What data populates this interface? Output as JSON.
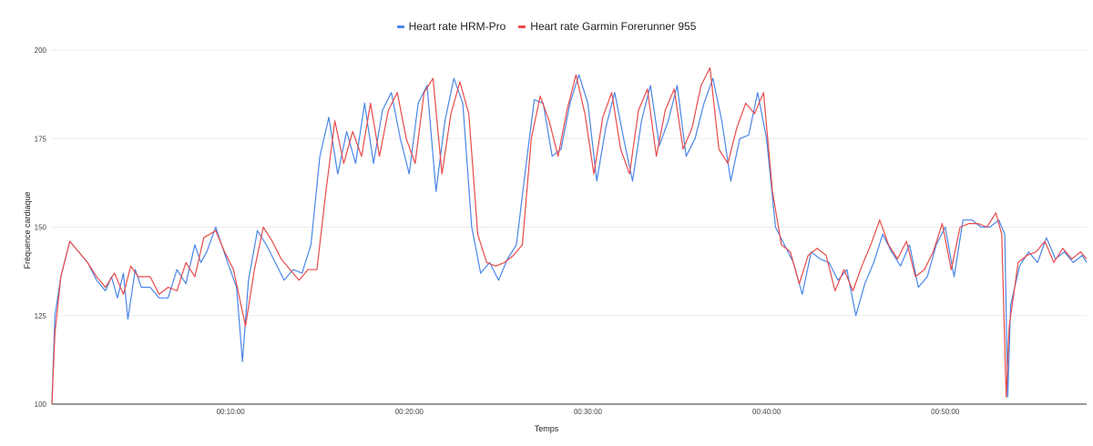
{
  "chart_data": {
    "type": "line",
    "xlabel": "Temps",
    "ylabel": "Fréquence cardiaque",
    "ylim": [
      100,
      200
    ],
    "xlim_seconds": [
      0,
      3475
    ],
    "y_ticks": [
      "100",
      "125",
      "150",
      "175",
      "200"
    ],
    "x_ticks": [
      {
        "label": "00:10:00",
        "t": 600
      },
      {
        "label": "00:20:00",
        "t": 1200
      },
      {
        "label": "00:30:00",
        "t": 1800
      },
      {
        "label": "00:40:00",
        "t": 2400
      },
      {
        "label": "00:50:00",
        "t": 3000
      }
    ],
    "grid": true,
    "legend_position": "top-center",
    "x_unit": "seconds",
    "series": [
      {
        "name": "Heart rate HRM-Pro",
        "color": "#4a86e8",
        "points": [
          [
            0,
            100
          ],
          [
            10,
            125
          ],
          [
            30,
            136
          ],
          [
            60,
            146
          ],
          [
            90,
            143
          ],
          [
            120,
            140
          ],
          [
            150,
            135
          ],
          [
            180,
            132
          ],
          [
            200,
            136
          ],
          [
            220,
            130
          ],
          [
            240,
            137
          ],
          [
            255,
            124
          ],
          [
            280,
            138
          ],
          [
            300,
            133
          ],
          [
            330,
            133
          ],
          [
            360,
            130
          ],
          [
            390,
            130
          ],
          [
            420,
            138
          ],
          [
            450,
            134
          ],
          [
            480,
            145
          ],
          [
            500,
            140
          ],
          [
            520,
            143
          ],
          [
            550,
            150
          ],
          [
            590,
            140
          ],
          [
            620,
            133
          ],
          [
            640,
            112
          ],
          [
            660,
            135
          ],
          [
            690,
            149
          ],
          [
            720,
            145
          ],
          [
            750,
            140
          ],
          [
            780,
            135
          ],
          [
            810,
            138
          ],
          [
            840,
            137
          ],
          [
            870,
            145
          ],
          [
            900,
            170
          ],
          [
            930,
            181
          ],
          [
            960,
            165
          ],
          [
            990,
            177
          ],
          [
            1020,
            168
          ],
          [
            1050,
            185
          ],
          [
            1080,
            168
          ],
          [
            1110,
            183
          ],
          [
            1140,
            188
          ],
          [
            1170,
            175
          ],
          [
            1200,
            165
          ],
          [
            1230,
            185
          ],
          [
            1260,
            190
          ],
          [
            1290,
            160
          ],
          [
            1320,
            180
          ],
          [
            1350,
            192
          ],
          [
            1380,
            185
          ],
          [
            1410,
            150
          ],
          [
            1440,
            137
          ],
          [
            1470,
            140
          ],
          [
            1500,
            135
          ],
          [
            1530,
            141
          ],
          [
            1560,
            145
          ],
          [
            1590,
            166
          ],
          [
            1620,
            186
          ],
          [
            1650,
            185
          ],
          [
            1680,
            170
          ],
          [
            1710,
            172
          ],
          [
            1740,
            185
          ],
          [
            1770,
            193
          ],
          [
            1800,
            185
          ],
          [
            1830,
            163
          ],
          [
            1860,
            178
          ],
          [
            1890,
            188
          ],
          [
            1920,
            175
          ],
          [
            1950,
            163
          ],
          [
            1980,
            180
          ],
          [
            2010,
            190
          ],
          [
            2040,
            173
          ],
          [
            2070,
            180
          ],
          [
            2100,
            190
          ],
          [
            2130,
            170
          ],
          [
            2160,
            175
          ],
          [
            2190,
            185
          ],
          [
            2220,
            192
          ],
          [
            2250,
            180
          ],
          [
            2280,
            163
          ],
          [
            2310,
            175
          ],
          [
            2340,
            176
          ],
          [
            2370,
            188
          ],
          [
            2400,
            175
          ],
          [
            2430,
            150
          ],
          [
            2460,
            145
          ],
          [
            2490,
            140
          ],
          [
            2520,
            131
          ],
          [
            2550,
            143
          ],
          [
            2580,
            141
          ],
          [
            2610,
            140
          ],
          [
            2640,
            135
          ],
          [
            2670,
            138
          ],
          [
            2700,
            125
          ],
          [
            2730,
            134
          ],
          [
            2760,
            140
          ],
          [
            2790,
            148
          ],
          [
            2820,
            143
          ],
          [
            2850,
            139
          ],
          [
            2880,
            145
          ],
          [
            2910,
            133
          ],
          [
            2940,
            136
          ],
          [
            2970,
            145
          ],
          [
            3000,
            150
          ],
          [
            3030,
            136
          ],
          [
            3060,
            152
          ],
          [
            3090,
            152
          ],
          [
            3120,
            150
          ],
          [
            3150,
            150
          ],
          [
            3180,
            152
          ],
          [
            3200,
            148
          ],
          [
            3210,
            102
          ],
          [
            3220,
            128
          ],
          [
            3250,
            139
          ],
          [
            3280,
            143
          ],
          [
            3310,
            140
          ],
          [
            3340,
            147
          ],
          [
            3370,
            141
          ],
          [
            3400,
            143
          ],
          [
            3430,
            140
          ],
          [
            3460,
            142
          ],
          [
            3475,
            140
          ]
        ]
      },
      {
        "name": "Heart rate Garmin Forerunner 955",
        "color": "#e84a4a",
        "points": [
          [
            0,
            100
          ],
          [
            10,
            120
          ],
          [
            30,
            136
          ],
          [
            60,
            146
          ],
          [
            90,
            143
          ],
          [
            120,
            140
          ],
          [
            150,
            136
          ],
          [
            180,
            133
          ],
          [
            210,
            137
          ],
          [
            240,
            131
          ],
          [
            265,
            139
          ],
          [
            290,
            136
          ],
          [
            330,
            136
          ],
          [
            360,
            131
          ],
          [
            390,
            133
          ],
          [
            420,
            132
          ],
          [
            450,
            140
          ],
          [
            480,
            136
          ],
          [
            510,
            147
          ],
          [
            550,
            149
          ],
          [
            580,
            143
          ],
          [
            610,
            138
          ],
          [
            650,
            122
          ],
          [
            680,
            138
          ],
          [
            710,
            150
          ],
          [
            740,
            146
          ],
          [
            770,
            141
          ],
          [
            800,
            138
          ],
          [
            830,
            135
          ],
          [
            860,
            138
          ],
          [
            890,
            138
          ],
          [
            920,
            160
          ],
          [
            950,
            180
          ],
          [
            980,
            168
          ],
          [
            1010,
            177
          ],
          [
            1040,
            170
          ],
          [
            1070,
            185
          ],
          [
            1100,
            170
          ],
          [
            1130,
            183
          ],
          [
            1160,
            188
          ],
          [
            1190,
            175
          ],
          [
            1220,
            168
          ],
          [
            1250,
            188
          ],
          [
            1280,
            192
          ],
          [
            1310,
            165
          ],
          [
            1340,
            182
          ],
          [
            1370,
            191
          ],
          [
            1400,
            182
          ],
          [
            1430,
            148
          ],
          [
            1460,
            140
          ],
          [
            1490,
            139
          ],
          [
            1520,
            140
          ],
          [
            1550,
            142
          ],
          [
            1580,
            145
          ],
          [
            1610,
            175
          ],
          [
            1640,
            187
          ],
          [
            1670,
            180
          ],
          [
            1700,
            170
          ],
          [
            1730,
            183
          ],
          [
            1760,
            193
          ],
          [
            1790,
            182
          ],
          [
            1820,
            165
          ],
          [
            1850,
            181
          ],
          [
            1880,
            188
          ],
          [
            1910,
            172
          ],
          [
            1940,
            165
          ],
          [
            1970,
            183
          ],
          [
            2000,
            189
          ],
          [
            2030,
            170
          ],
          [
            2060,
            183
          ],
          [
            2090,
            189
          ],
          [
            2120,
            172
          ],
          [
            2150,
            178
          ],
          [
            2180,
            190
          ],
          [
            2210,
            195
          ],
          [
            2240,
            172
          ],
          [
            2270,
            168
          ],
          [
            2300,
            178
          ],
          [
            2330,
            185
          ],
          [
            2360,
            182
          ],
          [
            2390,
            188
          ],
          [
            2420,
            160
          ],
          [
            2450,
            145
          ],
          [
            2480,
            143
          ],
          [
            2510,
            134
          ],
          [
            2540,
            142
          ],
          [
            2570,
            144
          ],
          [
            2600,
            142
          ],
          [
            2630,
            132
          ],
          [
            2660,
            138
          ],
          [
            2690,
            132
          ],
          [
            2720,
            139
          ],
          [
            2750,
            145
          ],
          [
            2780,
            152
          ],
          [
            2810,
            145
          ],
          [
            2840,
            141
          ],
          [
            2870,
            146
          ],
          [
            2900,
            136
          ],
          [
            2930,
            138
          ],
          [
            2960,
            143
          ],
          [
            2990,
            151
          ],
          [
            3020,
            138
          ],
          [
            3050,
            150
          ],
          [
            3080,
            151
          ],
          [
            3110,
            151
          ],
          [
            3140,
            150
          ],
          [
            3170,
            154
          ],
          [
            3190,
            148
          ],
          [
            3205,
            102
          ],
          [
            3215,
            122
          ],
          [
            3245,
            140
          ],
          [
            3275,
            142
          ],
          [
            3305,
            143
          ],
          [
            3335,
            146
          ],
          [
            3365,
            140
          ],
          [
            3395,
            144
          ],
          [
            3425,
            141
          ],
          [
            3455,
            143
          ],
          [
            3475,
            141
          ]
        ]
      }
    ]
  }
}
